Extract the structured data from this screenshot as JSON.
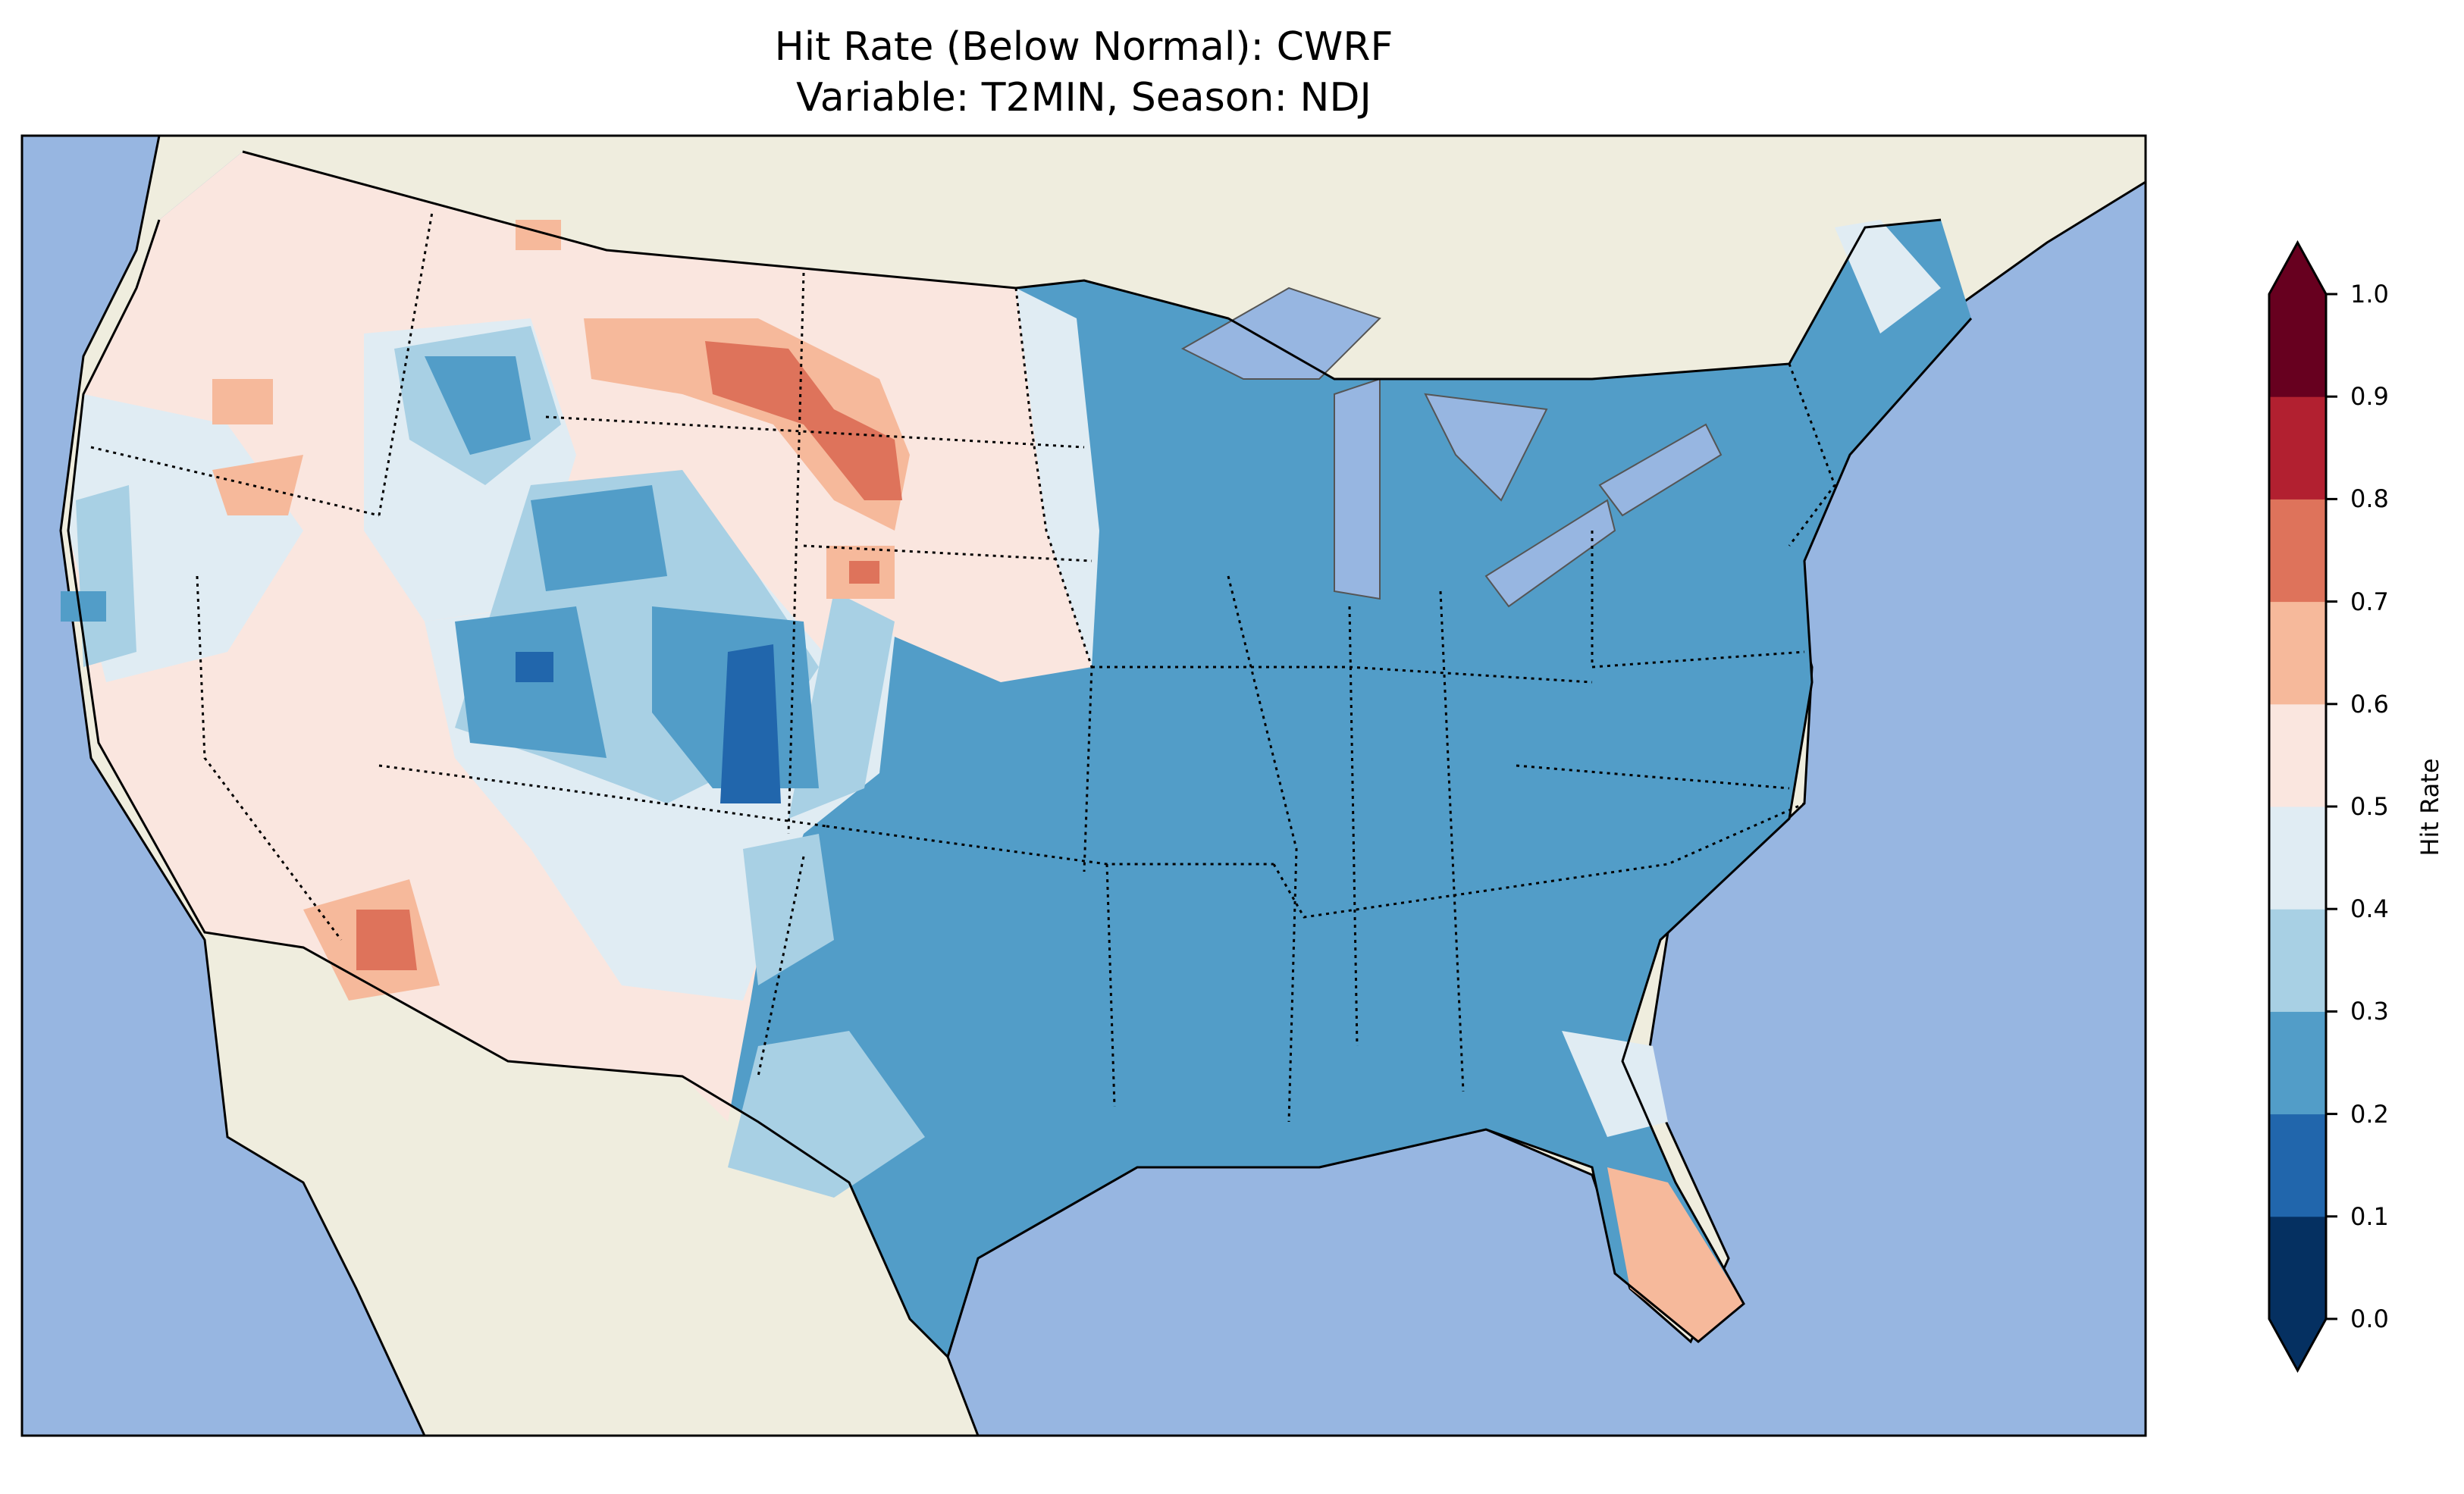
{
  "title": {
    "line1": "Hit Rate (Below Normal): CWRF",
    "line2": "Variable: T2MIN, Season: NDJ"
  },
  "map": {
    "ocean_color": "#97b6e1",
    "land_color": "#efedde",
    "region": "Contiguous United States"
  },
  "colorbar": {
    "label": "Hit Rate",
    "ticks": [
      "0.0",
      "0.1",
      "0.2",
      "0.3",
      "0.4",
      "0.5",
      "0.6",
      "0.7",
      "0.8",
      "0.9",
      "1.0"
    ],
    "range": [
      0.0,
      1.0
    ],
    "extend": "both",
    "colors": [
      "#053061",
      "#2166ac",
      "#529dc8",
      "#a8d0e4",
      "#e0ecf3",
      "#fae6df",
      "#f6b99b",
      "#de735b",
      "#b22030",
      "#67001f"
    ]
  }
}
